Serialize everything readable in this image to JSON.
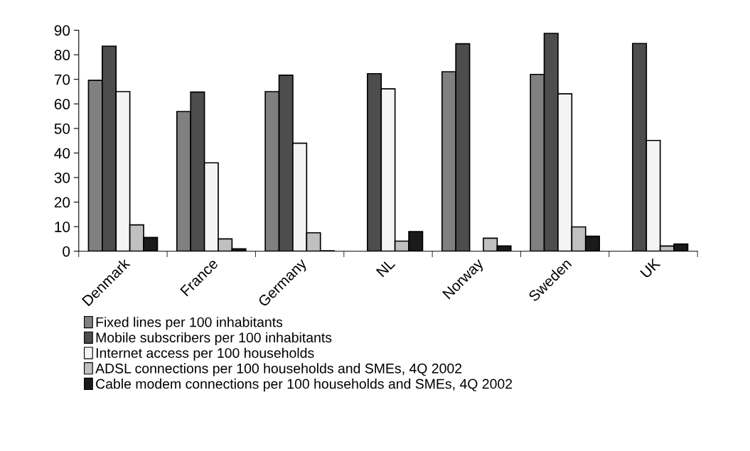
{
  "chart_data": {
    "type": "bar",
    "categories": [
      "Denmark",
      "France",
      "Germany",
      "NL",
      "Norway",
      "Sweden",
      "UK"
    ],
    "series": [
      {
        "name": "Fixed lines per 100 inhabitants",
        "color": "#808080",
        "values": [
          69.6,
          56.9,
          65,
          null,
          73.1,
          72.0,
          null
        ]
      },
      {
        "name": "Mobile subscribers per 100 inhabitants",
        "color": "#4d4d4d",
        "values": [
          83.5,
          64.8,
          71.7,
          72.3,
          84.5,
          88.7,
          84.6
        ]
      },
      {
        "name": "Internet access per 100 households",
        "color": "#f4f4f4",
        "values": [
          65,
          36,
          44,
          66.1,
          null,
          64.1,
          45.1
        ]
      },
      {
        "name": "ADSL connections per 100 households and SMEs, 4Q 2002",
        "color": "#c0c0c0",
        "values": [
          10.7,
          5.0,
          7.5,
          4.1,
          5.3,
          9.9,
          2.1
        ]
      },
      {
        "name": "Cable modem connections per 100 households and SMEs, 4Q 2002",
        "color": "#1a1a1a",
        "values": [
          5.6,
          1.0,
          0.2,
          8.0,
          2.1,
          6.1,
          2.9
        ]
      }
    ],
    "ylim": [
      0,
      90
    ],
    "yticks": [
      0,
      10,
      20,
      30,
      40,
      50,
      60,
      70,
      80,
      90
    ],
    "grid": false,
    "legend": "bottom"
  }
}
